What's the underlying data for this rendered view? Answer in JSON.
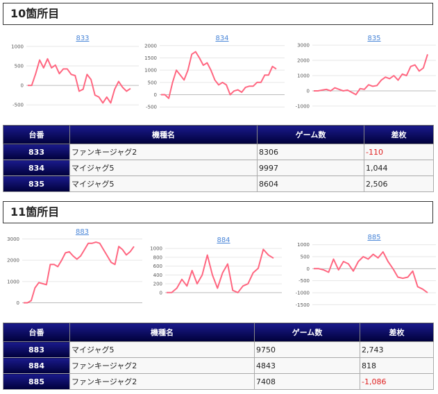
{
  "sections": [
    {
      "title": "10箇所目",
      "headers": {
        "unit": "台番",
        "model": "機種名",
        "games": "ゲーム数",
        "diff": "差枚"
      },
      "rows": [
        {
          "unit": "833",
          "model": "ファンキージャグ2",
          "games": "8306",
          "diff": "-110",
          "negative": true
        },
        {
          "unit": "834",
          "model": "マイジャグ5",
          "games": "9997",
          "diff": "1,044",
          "negative": false
        },
        {
          "unit": "835",
          "model": "マイジャグ5",
          "games": "8604",
          "diff": "2,506",
          "negative": false
        }
      ]
    },
    {
      "title": "11箇所目",
      "headers": {
        "unit": "台番",
        "model": "機種名",
        "games": "ゲーム数",
        "diff": "差枚"
      },
      "rows": [
        {
          "unit": "883",
          "model": "マイジャグ5",
          "games": "9750",
          "diff": "2,743",
          "negative": false
        },
        {
          "unit": "884",
          "model": "ファンキージャグ2",
          "games": "4843",
          "diff": "818",
          "negative": false
        },
        {
          "unit": "885",
          "model": "ファンキージャグ2",
          "games": "7408",
          "diff": "-1,086",
          "negative": true
        }
      ]
    }
  ],
  "line_color": "#ff6680",
  "chart_data": [
    {
      "type": "line",
      "title": "833",
      "yticks": [
        "1000",
        "500",
        "0",
        "-500"
      ],
      "ylim": [
        -550,
        1050
      ],
      "tick_values": [
        1000,
        500,
        0,
        -500
      ],
      "values": [
        0,
        0,
        300,
        650,
        450,
        680,
        450,
        520,
        300,
        420,
        420,
        280,
        250,
        -150,
        -100,
        280,
        150,
        -250,
        -300,
        -450,
        -300,
        -450,
        -100,
        100,
        -50,
        -150,
        -80
      ]
    },
    {
      "type": "line",
      "title": "834",
      "yticks": [
        "2000",
        "1500",
        "1000",
        "500",
        "0",
        "-500"
      ],
      "ylim": [
        -550,
        2050
      ],
      "tick_values": [
        2000,
        1500,
        1000,
        500,
        0,
        -500
      ],
      "values": [
        0,
        0,
        -150,
        500,
        1000,
        800,
        600,
        1000,
        1650,
        1750,
        1500,
        1200,
        1300,
        1000,
        600,
        400,
        500,
        400,
        0,
        150,
        200,
        100,
        300,
        350,
        350,
        500,
        500,
        800,
        800,
        1150,
        1050
      ]
    },
    {
      "type": "line",
      "title": "835",
      "yticks": [
        "3000",
        "2000",
        "1000",
        "0",
        "-1000"
      ],
      "ylim": [
        -1050,
        3050
      ],
      "tick_values": [
        3000,
        2000,
        1000,
        0,
        -1000
      ],
      "values": [
        0,
        0,
        50,
        100,
        0,
        200,
        100,
        0,
        50,
        -100,
        -250,
        150,
        100,
        400,
        300,
        350,
        700,
        900,
        800,
        1000,
        700,
        1100,
        1000,
        1600,
        1700,
        1300,
        1500,
        2400
      ]
    },
    {
      "type": "line",
      "title": "883",
      "yticks": [
        "3000",
        "2000",
        "1000",
        "0"
      ],
      "ylim": [
        -50,
        3050
      ],
      "tick_values": [
        3000,
        2000,
        1000,
        0
      ],
      "values": [
        0,
        0,
        100,
        700,
        950,
        900,
        850,
        1800,
        1800,
        1700,
        2000,
        2350,
        2400,
        2200,
        2050,
        2200,
        2500,
        2800,
        2800,
        2850,
        2800,
        2500,
        2200,
        1900,
        1800,
        2650,
        2500,
        2250,
        2400,
        2650
      ]
    },
    {
      "type": "line",
      "title": "884",
      "yticks": [
        "1000",
        "800",
        "600",
        "400",
        "200",
        "0"
      ],
      "ylim": [
        -50,
        1050
      ],
      "tick_values": [
        1000,
        800,
        600,
        400,
        200,
        0
      ],
      "values": [
        0,
        0,
        100,
        300,
        150,
        500,
        200,
        400,
        850,
        400,
        100,
        450,
        650,
        50,
        0,
        150,
        200,
        450,
        550,
        980,
        850,
        780
      ]
    },
    {
      "type": "line",
      "title": "885",
      "yticks": [
        "1000",
        "500",
        "0",
        "-500",
        "-1000",
        "-1500"
      ],
      "ylim": [
        -1550,
        1050
      ],
      "tick_values": [
        1000,
        500,
        0,
        -500,
        -1000,
        -1500
      ],
      "values": [
        0,
        0,
        -50,
        -150,
        400,
        -50,
        300,
        200,
        -100,
        300,
        500,
        400,
        600,
        450,
        700,
        300,
        0,
        -350,
        -400,
        -350,
        -100,
        -750,
        -850,
        -1000
      ]
    }
  ]
}
